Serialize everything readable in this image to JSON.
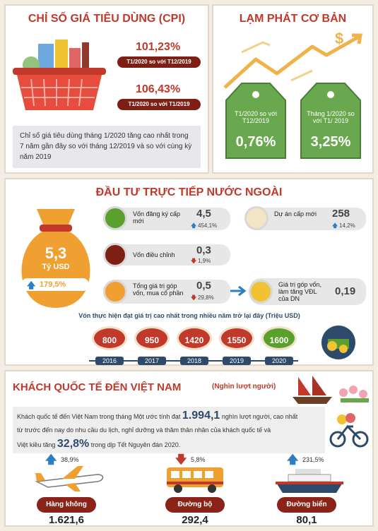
{
  "cpi": {
    "title": "CHỈ SỐ GIÁ TIÊU DÙNG (CPI)",
    "stat1_value": "101,23%",
    "stat1_label": "T1/2020 so với T12/2019",
    "stat2_value": "106,43%",
    "stat2_label": "T1/2020 so với T1/2019",
    "note": "Chỉ số giá tiêu dùng tháng 1/2020 tăng cao nhất trong 7 năm gần đây so với tháng 12/2019 và so với cùng kỳ năm 2019"
  },
  "inflation": {
    "title": "LẠM PHÁT CƠ BẢN",
    "tag1_label": "T1/2020 so với T12/2019",
    "tag1_value": "0,76%",
    "tag2_label": "Tháng 1/2020 so với T1/ 2019",
    "tag2_value": "3,25%",
    "dollar_symbol": "$"
  },
  "fdi": {
    "title": "ĐẦU TƯ TRỰC TIẾP NƯỚC NGOÀI",
    "total_value": "5,3",
    "total_unit": "Tỷ USD",
    "total_change": "179,5%",
    "items": [
      {
        "label": "Vốn đăng ký cấp mới",
        "value": "4,5",
        "change": "454,1%",
        "dir": "up"
      },
      {
        "label": "Dự án cấp mới",
        "value": "258",
        "change": "14,2%",
        "dir": "up"
      },
      {
        "label": "Vốn điều chỉnh",
        "value": "0,3",
        "change": "1,9%",
        "dir": "down"
      },
      {
        "label": "Tổng giá trị góp vốn, mua cổ phần",
        "value": "0,5",
        "change": "29,8%",
        "dir": "down"
      },
      {
        "label": "Giá trị góp vốn, làm tăng VĐL của DN",
        "value": "0,19",
        "change": "",
        "dir": ""
      }
    ],
    "realized_title": "Vốn thực hiện đạt giá trị cao nhất trong nhiều năm trở lại đây (Triệu USD)",
    "realized": [
      {
        "year": "2016",
        "value": "800",
        "color": "#c0392b"
      },
      {
        "year": "2017",
        "value": "950",
        "color": "#c0392b"
      },
      {
        "year": "2018",
        "value": "1420",
        "color": "#c0392b"
      },
      {
        "year": "2019",
        "value": "1550",
        "color": "#c0392b"
      },
      {
        "year": "2020",
        "value": "1600",
        "color": "#5aa02c"
      }
    ]
  },
  "tourism": {
    "title": "KHÁCH QUỐC TẾ ĐẾN VIỆT NAM",
    "subtitle": "(Nghìn lượt người)",
    "text_a": "Khách quốc tế đến Việt Nam trong tháng Một ước tính đạt",
    "text_big1": "1.994,1",
    "text_b": "nghìn lượt người, cao nhất",
    "text_c": "từ trước đến nay do nhu cầu du lịch, nghỉ dưỡng và thăm thân nhân của khách quốc tế và",
    "text_d": "Việt kiều tăng",
    "text_big2": "32,8%",
    "text_e": "trong dịp Tết Nguyên đán 2020.",
    "modes": [
      {
        "label": "Hàng không",
        "value": "1.621,6",
        "change": "38,9%",
        "dir": "up"
      },
      {
        "label": "Đường bộ",
        "value": "292,4",
        "change": "5,8%",
        "dir": "down"
      },
      {
        "label": "Đường biển",
        "value": "80,1",
        "change": "231,5%",
        "dir": "up"
      }
    ]
  }
}
